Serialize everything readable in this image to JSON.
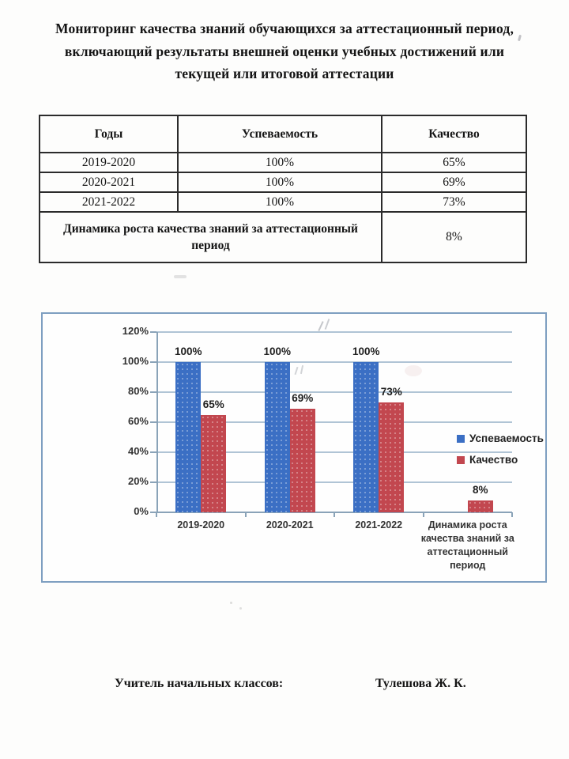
{
  "page": {
    "title_lines": [
      "Мониторинг качества знаний обучающихся за аттестационный период,",
      "включающий результаты внешней оценки учебных достижений или",
      "текущей или итоговой аттестации"
    ],
    "footer": {
      "label": "Учитель начальных классов:",
      "name": "Тулешова Ж. К."
    }
  },
  "table": {
    "headers": [
      "Годы",
      "Успеваемость",
      "Качество"
    ],
    "rows": [
      [
        "2019-2020",
        "100%",
        "65%"
      ],
      [
        "2020-2021",
        "100%",
        "69%"
      ],
      [
        "2021-2022",
        "100%",
        "73%"
      ]
    ],
    "summary_row": {
      "label": "Динамика роста качества знаний за аттестационный период",
      "value": "8%"
    }
  },
  "chart_data": {
    "type": "bar",
    "categories": [
      "2019-2020",
      "2020-2021",
      "2021-2022",
      "Динамика роста качества знаний за аттестационный период"
    ],
    "series": [
      {
        "name": "Успеваемость",
        "color": "#3b6fc4",
        "values": [
          100,
          100,
          100,
          null
        ]
      },
      {
        "name": "Качество",
        "color": "#c2474f",
        "values": [
          65,
          69,
          73,
          8
        ]
      }
    ],
    "title": "",
    "xlabel": "",
    "ylabel": "",
    "ylim": [
      0,
      120
    ],
    "y_ticks": [
      "0%",
      "20%",
      "40%",
      "60%",
      "80%",
      "100%",
      "120%"
    ],
    "grid": true,
    "legend_position": "right",
    "data_label_format": "percent"
  }
}
